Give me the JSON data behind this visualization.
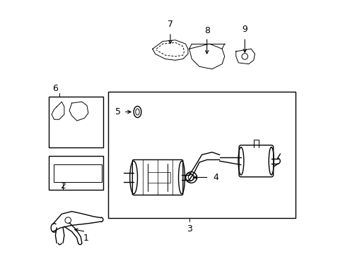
{
  "bg_color": "#ffffff",
  "line_color": "#000000",
  "lw_main": 1.0,
  "lw_thin": 0.7,
  "font_size": 9
}
